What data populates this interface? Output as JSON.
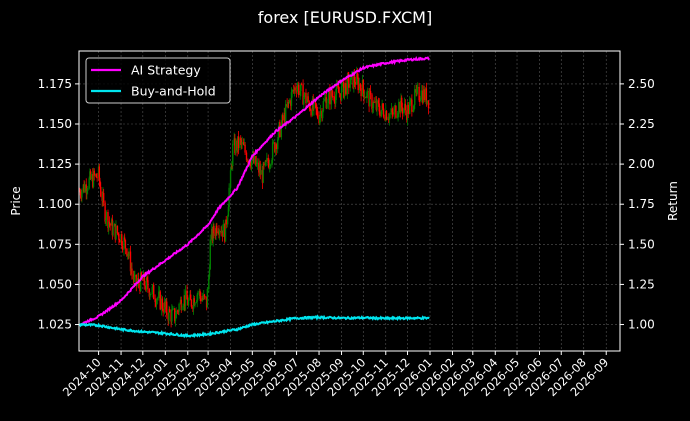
{
  "chart_data": {
    "type": "line",
    "title": "forex [EURUSD.FXCM]",
    "xlabel": "",
    "ylabel": "Price",
    "ylabel_right": "Return",
    "grid": true,
    "legend_position": "upper left",
    "legend": [
      "AI Strategy",
      "Buy-and-Hold"
    ],
    "colors": {
      "background": "#000000",
      "axes": "#ffffff",
      "grid": "#555555",
      "ai_strategy": "#ff00ff",
      "buy_and_hold": "#00e5ee",
      "candle_up": "#008000",
      "candle_down": "#ff0000"
    },
    "x_ticks": [
      "2024-10",
      "2024-11",
      "2024-12",
      "2025-01",
      "2025-02",
      "2025-03",
      "2025-04",
      "2025-05",
      "2025-06",
      "2025-07",
      "2025-08",
      "2025-09",
      "2025-10",
      "2025-11",
      "2025-12",
      "2026-01",
      "2026-02",
      "2026-03",
      "2026-04",
      "2026-05",
      "2026-06",
      "2026-07",
      "2026-08",
      "2026-09"
    ],
    "y_left": {
      "ticks": [
        "1.025",
        "1.050",
        "1.075",
        "1.100",
        "1.125",
        "1.150",
        "1.175"
      ],
      "range": [
        1.0085,
        1.1955
      ]
    },
    "y_right": {
      "ticks": [
        "1.00",
        "1.25",
        "1.50",
        "1.75",
        "2.00",
        "2.25",
        "2.50"
      ],
      "range": [
        0.835,
        2.705
      ]
    },
    "x_range": [
      "2024-09-04",
      "2026-09-20"
    ],
    "series": [
      {
        "name": "Price (candles)",
        "axis": "left",
        "x": [
          "2024-09-05",
          "2024-09-20",
          "2024-10-01",
          "2024-10-10",
          "2024-10-20",
          "2024-11-01",
          "2024-11-10",
          "2024-11-20",
          "2024-12-01",
          "2024-12-15",
          "2024-12-25",
          "2025-01-05",
          "2025-01-15",
          "2025-01-25",
          "2025-02-05",
          "2025-02-15",
          "2025-02-28",
          "2025-03-05",
          "2025-03-15",
          "2025-03-25",
          "2025-04-05",
          "2025-04-15",
          "2025-04-25",
          "2025-05-05",
          "2025-05-15",
          "2025-05-25",
          "2025-06-05",
          "2025-06-15",
          "2025-06-25",
          "2025-07-01",
          "2025-07-10",
          "2025-07-20",
          "2025-08-01",
          "2025-08-10",
          "2025-08-20",
          "2025-09-01",
          "2025-09-10",
          "2025-09-20",
          "2025-10-01",
          "2025-10-10",
          "2025-10-20",
          "2025-11-01",
          "2025-11-10",
          "2025-11-20",
          "2025-12-01",
          "2025-12-10",
          "2025-12-20",
          "2025-12-31"
        ],
        "values": [
          1.108,
          1.115,
          1.118,
          1.095,
          1.085,
          1.08,
          1.072,
          1.05,
          1.052,
          1.045,
          1.04,
          1.032,
          1.03,
          1.042,
          1.038,
          1.045,
          1.038,
          1.078,
          1.088,
          1.082,
          1.135,
          1.138,
          1.13,
          1.125,
          1.118,
          1.128,
          1.142,
          1.155,
          1.168,
          1.175,
          1.168,
          1.162,
          1.155,
          1.165,
          1.168,
          1.17,
          1.175,
          1.178,
          1.172,
          1.165,
          1.16,
          1.158,
          1.155,
          1.162,
          1.158,
          1.165,
          1.17,
          1.165
        ]
      },
      {
        "name": "AI Strategy",
        "axis": "right",
        "x": [
          "2024-09-05",
          "2024-10-01",
          "2024-11-01",
          "2024-12-01",
          "2025-01-01",
          "2025-02-01",
          "2025-03-01",
          "2025-03-15",
          "2025-04-10",
          "2025-05-01",
          "2025-06-01",
          "2025-07-01",
          "2025-08-01",
          "2025-09-01",
          "2025-10-01",
          "2025-11-01",
          "2025-12-01",
          "2025-12-31"
        ],
        "values": [
          1.0,
          1.05,
          1.15,
          1.3,
          1.4,
          1.5,
          1.62,
          1.72,
          1.85,
          2.05,
          2.2,
          2.3,
          2.42,
          2.52,
          2.6,
          2.63,
          2.65,
          2.66
        ]
      },
      {
        "name": "Buy-and-Hold",
        "axis": "right",
        "x": [
          "2024-09-05",
          "2024-10-01",
          "2024-11-01",
          "2024-12-01",
          "2025-01-01",
          "2025-02-01",
          "2025-03-01",
          "2025-03-20",
          "2025-04-10",
          "2025-05-01",
          "2025-06-01",
          "2025-07-01",
          "2025-08-01",
          "2025-09-01",
          "2025-10-01",
          "2025-11-01",
          "2025-12-01",
          "2025-12-31"
        ],
        "values": [
          1.0,
          0.995,
          0.97,
          0.955,
          0.945,
          0.93,
          0.94,
          0.955,
          0.97,
          1.0,
          1.02,
          1.04,
          1.045,
          1.04,
          1.042,
          1.038,
          1.04,
          1.04
        ]
      }
    ]
  }
}
